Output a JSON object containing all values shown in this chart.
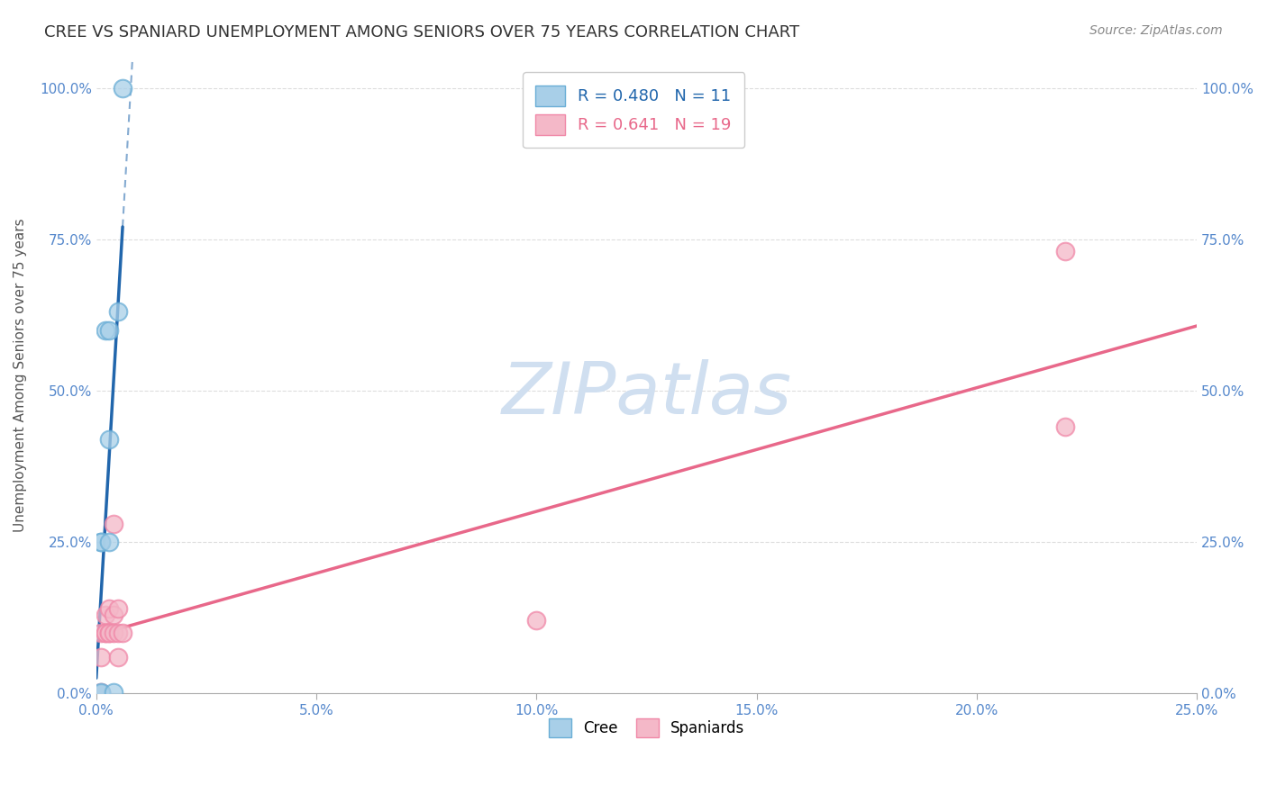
{
  "title": "CREE VS SPANIARD UNEMPLOYMENT AMONG SENIORS OVER 75 YEARS CORRELATION CHART",
  "source": "Source: ZipAtlas.com",
  "ylabel": "Unemployment Among Seniors over 75 years",
  "xlabel": "",
  "xlim": [
    0.0,
    0.25
  ],
  "ylim": [
    0.0,
    1.05
  ],
  "xticks": [
    0.0,
    0.05,
    0.1,
    0.15,
    0.2,
    0.25
  ],
  "yticks": [
    0.0,
    0.25,
    0.5,
    0.75,
    1.0
  ],
  "cree_x": [
    0.001,
    0.001,
    0.001,
    0.001,
    0.002,
    0.003,
    0.003,
    0.003,
    0.004,
    0.005,
    0.006
  ],
  "cree_y": [
    0.0,
    0.001,
    0.25,
    0.25,
    0.6,
    0.42,
    0.6,
    0.25,
    0.001,
    0.63,
    1.0
  ],
  "spaniard_x": [
    0.001,
    0.001,
    0.001,
    0.002,
    0.002,
    0.002,
    0.003,
    0.003,
    0.003,
    0.004,
    0.004,
    0.004,
    0.005,
    0.005,
    0.005,
    0.006,
    0.1,
    0.22,
    0.22
  ],
  "spaniard_y": [
    0.001,
    0.06,
    0.1,
    0.1,
    0.13,
    0.1,
    0.1,
    0.14,
    0.1,
    0.28,
    0.13,
    0.1,
    0.14,
    0.1,
    0.06,
    0.1,
    0.12,
    0.44,
    0.73
  ],
  "cree_R": 0.48,
  "cree_N": 11,
  "spaniard_R": 0.641,
  "spaniard_N": 19,
  "cree_color": "#a8cfe8",
  "cree_edge_color": "#6aaed6",
  "spaniard_color": "#f4b8c8",
  "spaniard_edge_color": "#f088a8",
  "cree_line_color": "#2166ac",
  "spaniard_line_color": "#e8688a",
  "watermark": "ZIPatlas",
  "watermark_color": "#d0dff0",
  "legend_cree_color": "#2166ac",
  "legend_spaniard_color": "#e8688a",
  "background_color": "#ffffff",
  "grid_color": "#dddddd",
  "tick_color": "#5588cc",
  "spine_color": "#aaaaaa",
  "title_color": "#333333",
  "source_color": "#888888",
  "ylabel_color": "#555555"
}
